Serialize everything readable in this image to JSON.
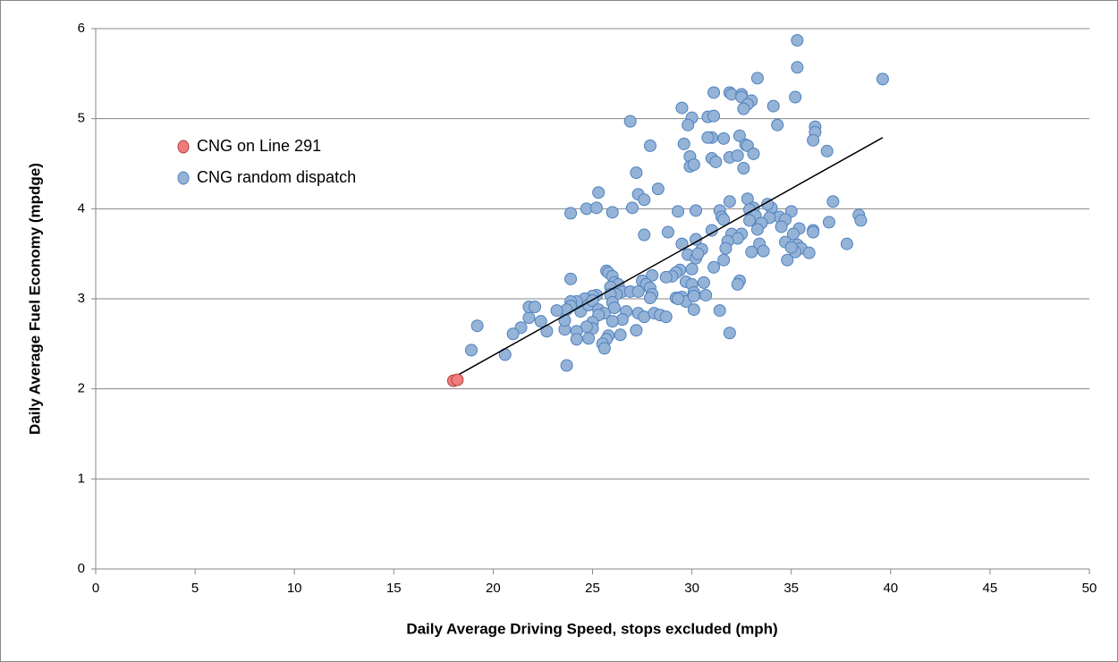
{
  "chart_data": {
    "type": "scatter",
    "xlabel": "Daily Average Driving Speed, stops excluded (mph)",
    "ylabel": "Daily Average Fuel Economy (mpdge)",
    "xlim": [
      0,
      50
    ],
    "xticks": [
      0,
      5,
      10,
      15,
      20,
      25,
      30,
      35,
      40,
      45,
      50
    ],
    "ylim": [
      0,
      6
    ],
    "yticks": [
      0,
      1,
      2,
      3,
      4,
      5,
      6
    ],
    "grid": true,
    "legend": "upper left",
    "series": [
      {
        "name": "CNG on Line 291",
        "color": "#f07c7c",
        "edge": "#b04040",
        "x": [
          18.0,
          18.2
        ],
        "values": [
          2.09,
          2.1
        ]
      },
      {
        "name": "CNG random dispatch",
        "color": "#95b3d7",
        "edge": "#4f81bd",
        "x": [
          35.3,
          35.3,
          39.6,
          33.3,
          35.2,
          31.1,
          31.9,
          32.0,
          32.5,
          32.5,
          33.0,
          32.8,
          32.6,
          29.5,
          34.1,
          30.0,
          30.8,
          31.1,
          26.9,
          29.8,
          34.3,
          36.2,
          36.2,
          32.4,
          31.0,
          31.6,
          30.8,
          36.1,
          27.9,
          29.6,
          32.7,
          32.8,
          36.8,
          31.9,
          32.3,
          33.1,
          29.9,
          31.0,
          31.2,
          29.9,
          30.1,
          32.6,
          27.2,
          28.3,
          25.3,
          27.3,
          27.6,
          31.9,
          32.8,
          37.1,
          33.1,
          34.0,
          33.8,
          24.7,
          25.2,
          27.0,
          30.2,
          31.4,
          32.9,
          35.0,
          29.3,
          23.9,
          26.0,
          31.5,
          33.2,
          34.4,
          34.7,
          38.4,
          38.5,
          33.9,
          31.6,
          32.9,
          33.5,
          36.9,
          34.5,
          35.4,
          36.1,
          36.1,
          33.3,
          28.8,
          31.0,
          35.1,
          32.0,
          27.6,
          32.5,
          29.5,
          30.2,
          30.5,
          32.3,
          31.8,
          33.4,
          34.7,
          35.3,
          35.5,
          35.2,
          35.9,
          37.8,
          33.6,
          33.0,
          29.8,
          30.2,
          31.7,
          31.6,
          34.8,
          35.0,
          31.1,
          30.0,
          29.4,
          29.2,
          29.0,
          28.7,
          28.0,
          25.7,
          25.8,
          26.0,
          23.9,
          26.1,
          26.3,
          25.9,
          27.5,
          27.7,
          27.9,
          29.7,
          30.6,
          32.4,
          32.3,
          30.0,
          30.1,
          28.0,
          27.9,
          26.5,
          26.9,
          27.3,
          26.2,
          25.9,
          25.2,
          25.0,
          24.6,
          24.2,
          23.9,
          23.9,
          23.7,
          24.4,
          24.8,
          25.0,
          26.0,
          26.1,
          25.3,
          25.6,
          27.3,
          27.6,
          28.1,
          28.4,
          28.7,
          29.2,
          29.5,
          29.7,
          30.1,
          30.7,
          30.1,
          29.3,
          26.7,
          26.5,
          26.0,
          25.3,
          25.0,
          25.0,
          24.7,
          24.2,
          23.6,
          22.7,
          22.4,
          21.8,
          21.8,
          22.1,
          23.2,
          23.6,
          21.4,
          21.0,
          19.2,
          18.9,
          20.6,
          24.2,
          24.8,
          25.8,
          25.7,
          26.4,
          27.2,
          25.5,
          25.6,
          23.7,
          31.4,
          31.9,
          30.3
        ],
        "values": [
          5.87,
          5.57,
          5.44,
          5.45,
          5.24,
          5.29,
          5.29,
          5.27,
          5.27,
          5.24,
          5.2,
          5.16,
          5.11,
          5.12,
          5.14,
          5.01,
          5.02,
          5.03,
          4.97,
          4.93,
          4.93,
          4.91,
          4.85,
          4.81,
          4.79,
          4.78,
          4.79,
          4.76,
          4.7,
          4.72,
          4.71,
          4.7,
          4.64,
          4.57,
          4.59,
          4.61,
          4.58,
          4.56,
          4.52,
          4.47,
          4.49,
          4.45,
          4.4,
          4.22,
          4.18,
          4.16,
          4.1,
          4.08,
          4.11,
          4.08,
          4.01,
          4.01,
          4.05,
          4.0,
          4.01,
          4.01,
          3.98,
          3.98,
          3.99,
          3.97,
          3.97,
          3.95,
          3.96,
          3.91,
          3.92,
          3.91,
          3.88,
          3.93,
          3.87,
          3.9,
          3.88,
          3.87,
          3.84,
          3.85,
          3.8,
          3.78,
          3.76,
          3.74,
          3.77,
          3.74,
          3.76,
          3.72,
          3.72,
          3.71,
          3.72,
          3.61,
          3.66,
          3.55,
          3.67,
          3.64,
          3.61,
          3.63,
          3.6,
          3.56,
          3.52,
          3.51,
          3.61,
          3.53,
          3.52,
          3.49,
          3.45,
          3.56,
          3.43,
          3.43,
          3.57,
          3.35,
          3.33,
          3.32,
          3.29,
          3.25,
          3.24,
          3.26,
          3.31,
          3.29,
          3.25,
          3.22,
          3.18,
          3.16,
          3.13,
          3.2,
          3.16,
          3.12,
          3.19,
          3.18,
          3.2,
          3.16,
          3.16,
          3.07,
          3.05,
          3.01,
          3.08,
          3.08,
          3.08,
          3.05,
          3.05,
          3.04,
          3.03,
          3.0,
          2.97,
          2.97,
          2.92,
          2.88,
          2.86,
          2.93,
          2.98,
          2.96,
          2.9,
          2.88,
          2.84,
          2.84,
          2.8,
          2.84,
          2.82,
          2.8,
          3.01,
          3.02,
          2.97,
          3.03,
          3.04,
          2.88,
          3.0,
          2.86,
          2.77,
          2.75,
          2.82,
          2.74,
          2.67,
          2.69,
          2.64,
          2.66,
          2.64,
          2.75,
          2.79,
          2.91,
          2.91,
          2.87,
          2.76,
          2.68,
          2.61,
          2.7,
          2.43,
          2.38,
          2.55,
          2.56,
          2.59,
          2.55,
          2.6,
          2.65,
          2.5,
          2.45,
          2.26,
          2.87,
          2.62,
          3.5
        ]
      }
    ],
    "trendline": {
      "color": "#000000",
      "x": [
        18.2,
        39.6
      ],
      "values": [
        2.15,
        4.79
      ]
    }
  }
}
